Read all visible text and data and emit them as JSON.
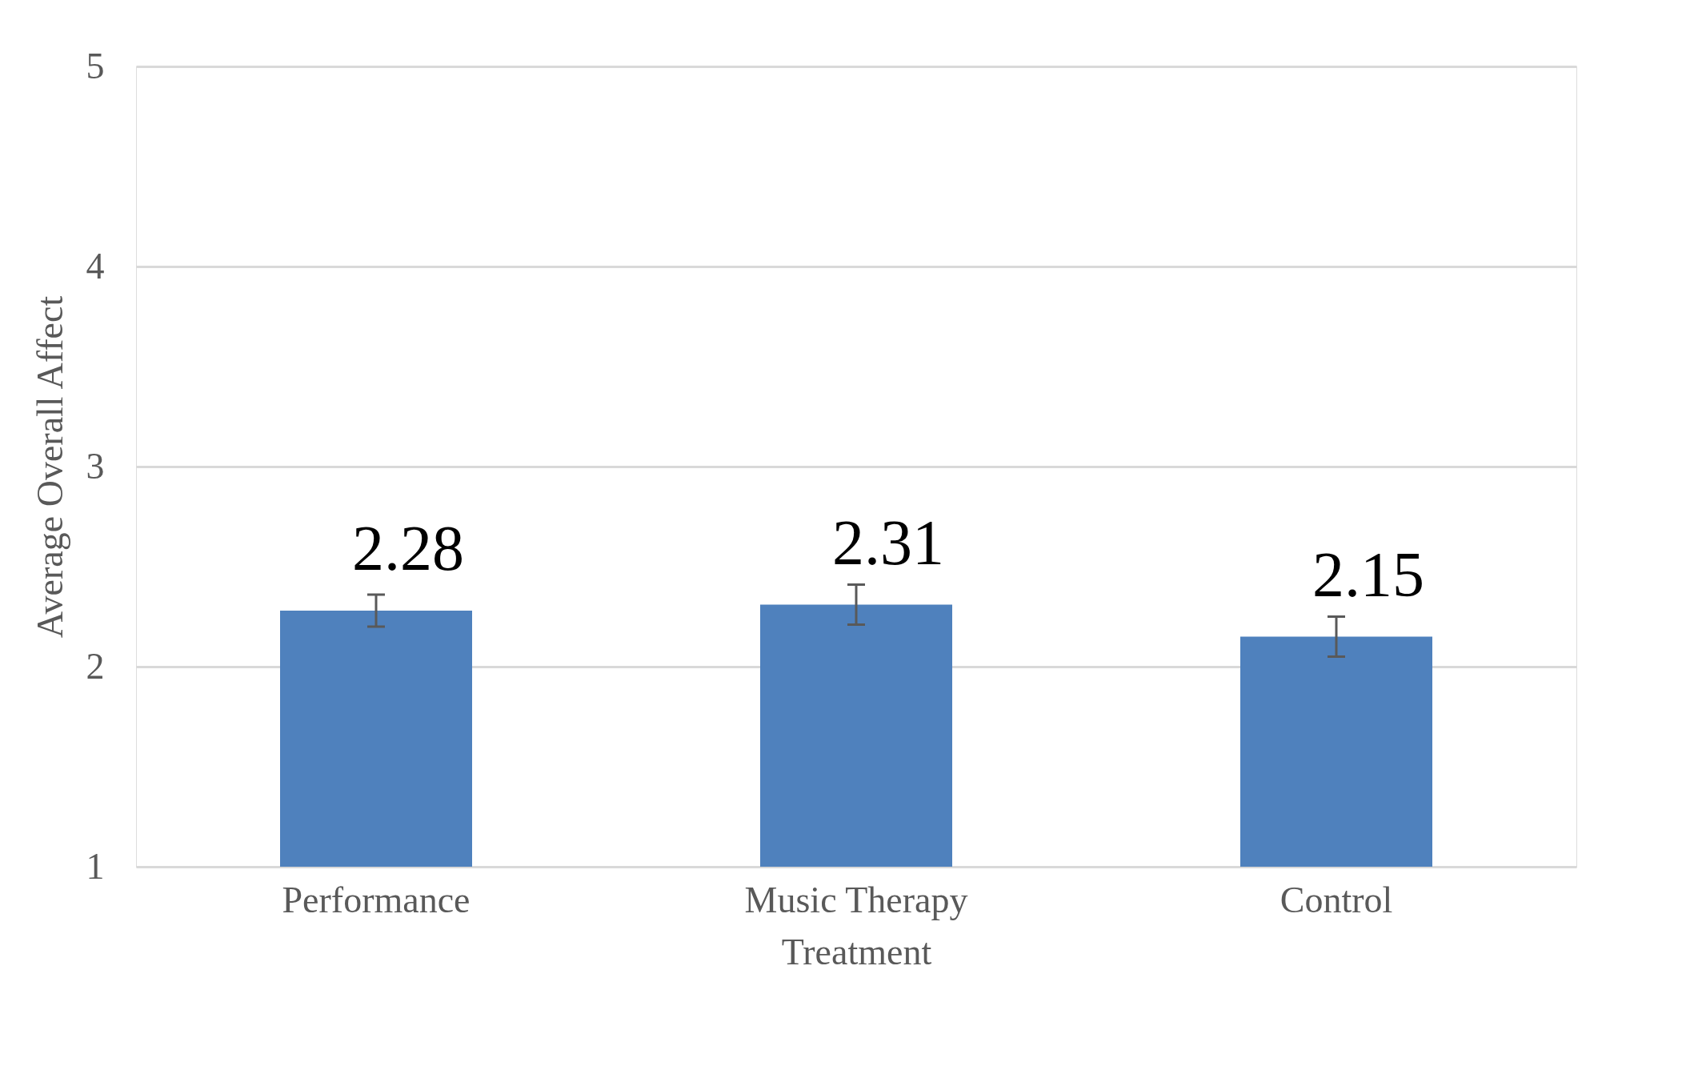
{
  "chart_data": {
    "type": "bar",
    "xlabel": "Treatment",
    "ylabel": "Average Overall Affect",
    "categories": [
      "Performance",
      "Music Therapy",
      "Control"
    ],
    "values": [
      2.28,
      2.31,
      2.15
    ],
    "color": "#4f81bd",
    "errors": [
      0.08,
      0.1,
      0.1
    ],
    "ylim": [
      1,
      5
    ],
    "yticks": [
      1,
      2,
      3,
      4,
      5
    ],
    "grid": "y",
    "data_labels": true
  }
}
